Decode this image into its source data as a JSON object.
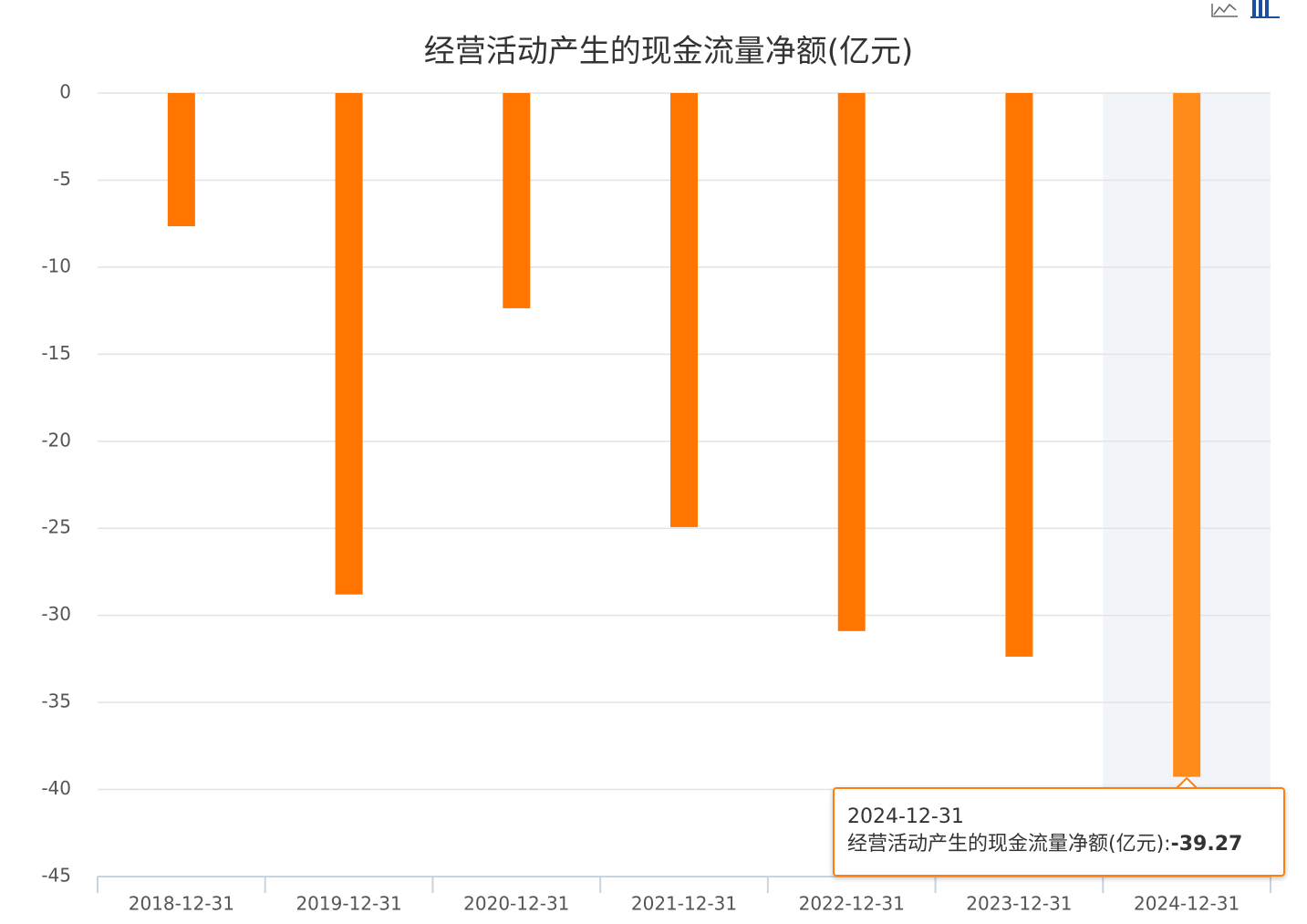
{
  "chart_data": {
    "type": "bar",
    "title": "经营活动产生的现金流量净额(亿元)",
    "series_name": "经营活动产生的现金流量净额(亿元)",
    "categories": [
      "2018-12-31",
      "2019-12-31",
      "2020-12-31",
      "2021-12-31",
      "2022-12-31",
      "2023-12-31",
      "2024-12-31"
    ],
    "values": [
      -7.65,
      -28.8,
      -12.36,
      -24.93,
      -30.9,
      -32.37,
      -39.27
    ],
    "value_labels": [
      null,
      null,
      null,
      null,
      null,
      null,
      "-39.27"
    ],
    "color": "#ff7500",
    "highlight_color": "#ff8c1a",
    "ylim": [
      -45,
      0
    ],
    "yticks": [
      0,
      -5,
      -10,
      -15,
      -20,
      -25,
      -30,
      -35,
      -40,
      -45
    ],
    "grid": true,
    "highlighted": 6
  }
}
